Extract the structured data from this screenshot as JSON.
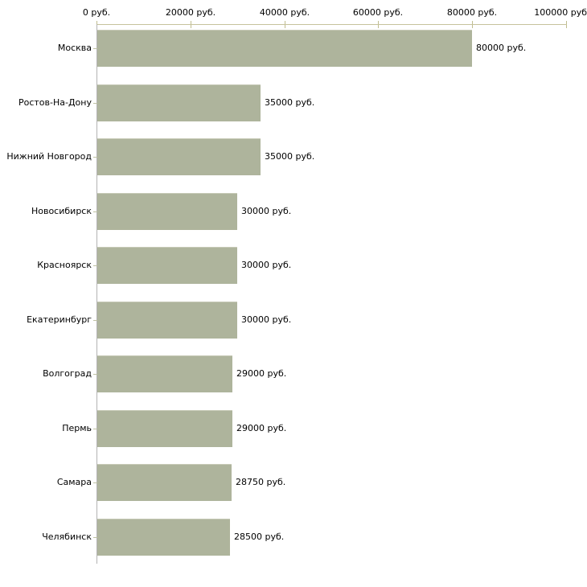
{
  "chart_data": {
    "type": "bar",
    "orientation": "horizontal",
    "title": "",
    "xlabel": "",
    "ylabel": "",
    "categories": [
      "Москва",
      "Ростов-На-Дону",
      "Нижний Новгород",
      "Новосибирск",
      "Красноярск",
      "Екатеринбург",
      "Волгоград",
      "Пермь",
      "Самара",
      "Челябинск"
    ],
    "values": [
      80000,
      35000,
      35000,
      30000,
      30000,
      30000,
      29000,
      29000,
      28750,
      28500
    ],
    "value_labels": [
      "80000 руб.",
      "35000 руб.",
      "35000 руб.",
      "30000 руб.",
      "30000 руб.",
      "30000 руб.",
      "29000 руб.",
      "29000 руб.",
      "28750 руб.",
      "28500 руб."
    ],
    "x_axis": {
      "position": "top",
      "min": 0,
      "max": 100000,
      "ticks": [
        0,
        20000,
        40000,
        60000,
        80000,
        100000
      ],
      "tick_labels": [
        "0 руб.",
        "20000 руб.",
        "40000 руб.",
        "60000 руб.",
        "80000 руб.",
        "100000 руб"
      ]
    },
    "grid": false,
    "legend": false,
    "colors": {
      "bar_fill": "#aeb49c",
      "bar_top_edge": "#c7cab7",
      "x_axis_line": "#c6c39c",
      "x_tick": "#c0bd8f",
      "y_axis_line": "#b3b3b3",
      "y_tick": "#bfc1a4",
      "text": "#000000",
      "background": "#ffffff"
    }
  }
}
